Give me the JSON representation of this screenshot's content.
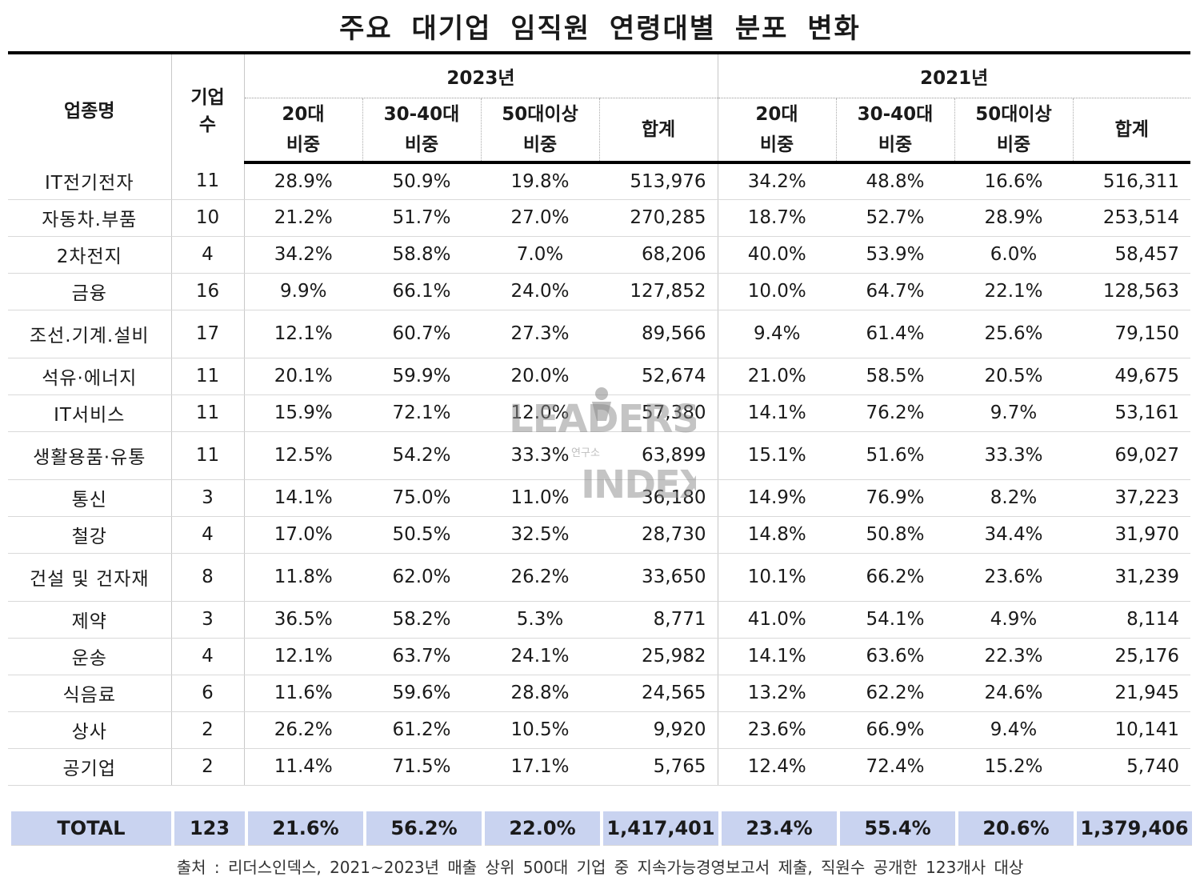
{
  "title": "주요 대기업 임직원 연령대별 분포 변화",
  "header": {
    "industry": "업종명",
    "company_count_line1": "기업",
    "company_count_line2": "수",
    "year_2023": "2023년",
    "year_2021": "2021년",
    "col_20s_line1": "20대",
    "col_3040s_line1": "30-40대",
    "col_50plus_line1": "50대이상",
    "col_ratio_line2": "비중",
    "col_total": "합계"
  },
  "rows": [
    {
      "industry": "IT전기전자",
      "count": "11",
      "y2023": [
        "28.9%",
        "50.9%",
        "19.8%",
        "513,976"
      ],
      "y2021": [
        "34.2%",
        "48.8%",
        "16.6%",
        "516,311"
      ]
    },
    {
      "industry": "자동차.부품",
      "count": "10",
      "y2023": [
        "21.2%",
        "51.7%",
        "27.0%",
        "270,285"
      ],
      "y2021": [
        "18.7%",
        "52.7%",
        "28.9%",
        "253,514"
      ]
    },
    {
      "industry": "2차전지",
      "count": "4",
      "y2023": [
        "34.2%",
        "58.8%",
        "7.0%",
        "68,206"
      ],
      "y2021": [
        "40.0%",
        "53.9%",
        "6.0%",
        "58,457"
      ]
    },
    {
      "industry": "금융",
      "count": "16",
      "y2023": [
        "9.9%",
        "66.1%",
        "24.0%",
        "127,852"
      ],
      "y2021": [
        "10.0%",
        "64.7%",
        "22.1%",
        "128,563"
      ]
    },
    {
      "industry": "조선.기계.설비",
      "count": "17",
      "y2023": [
        "12.1%",
        "60.7%",
        "27.3%",
        "89,566"
      ],
      "y2021": [
        "9.4%",
        "61.4%",
        "25.6%",
        "79,150"
      ]
    },
    {
      "industry": "석유·에너지",
      "count": "11",
      "y2023": [
        "20.1%",
        "59.9%",
        "20.0%",
        "52,674"
      ],
      "y2021": [
        "21.0%",
        "58.5%",
        "20.5%",
        "49,675"
      ]
    },
    {
      "industry": "IT서비스",
      "count": "11",
      "y2023": [
        "15.9%",
        "72.1%",
        "12.0%",
        "57,380"
      ],
      "y2021": [
        "14.1%",
        "76.2%",
        "9.7%",
        "53,161"
      ]
    },
    {
      "industry": "생활용품·유통",
      "count": "11",
      "y2023": [
        "12.5%",
        "54.2%",
        "33.3%",
        "63,899"
      ],
      "y2021": [
        "15.1%",
        "51.6%",
        "33.3%",
        "69,027"
      ]
    },
    {
      "industry": "통신",
      "count": "3",
      "y2023": [
        "14.1%",
        "75.0%",
        "11.0%",
        "36,180"
      ],
      "y2021": [
        "14.9%",
        "76.9%",
        "8.2%",
        "37,223"
      ]
    },
    {
      "industry": "철강",
      "count": "4",
      "y2023": [
        "17.0%",
        "50.5%",
        "32.5%",
        "28,730"
      ],
      "y2021": [
        "14.8%",
        "50.8%",
        "34.4%",
        "31,970"
      ]
    },
    {
      "industry": "건설 및 건자재",
      "count": "8",
      "y2023": [
        "11.8%",
        "62.0%",
        "26.2%",
        "33,650"
      ],
      "y2021": [
        "10.1%",
        "66.2%",
        "23.6%",
        "31,239"
      ]
    },
    {
      "industry": "제약",
      "count": "3",
      "y2023": [
        "36.5%",
        "58.2%",
        "5.3%",
        "8,771"
      ],
      "y2021": [
        "41.0%",
        "54.1%",
        "4.9%",
        "8,114"
      ]
    },
    {
      "industry": "운송",
      "count": "4",
      "y2023": [
        "12.1%",
        "63.7%",
        "24.1%",
        "25,982"
      ],
      "y2021": [
        "14.1%",
        "63.6%",
        "22.3%",
        "25,176"
      ]
    },
    {
      "industry": "식음료",
      "count": "6",
      "y2023": [
        "11.6%",
        "59.6%",
        "28.8%",
        "24,565"
      ],
      "y2021": [
        "13.2%",
        "62.2%",
        "24.6%",
        "21,945"
      ]
    },
    {
      "industry": "상사",
      "count": "2",
      "y2023": [
        "26.2%",
        "61.2%",
        "10.5%",
        "9,920"
      ],
      "y2021": [
        "23.6%",
        "66.9%",
        "9.4%",
        "10,141"
      ]
    },
    {
      "industry": "공기업",
      "count": "2",
      "y2023": [
        "11.4%",
        "71.5%",
        "17.1%",
        "5,765"
      ],
      "y2021": [
        "12.4%",
        "72.4%",
        "15.2%",
        "5,740"
      ]
    }
  ],
  "total": {
    "label": "TOTAL",
    "count": "123",
    "y2023": [
      "21.6%",
      "56.2%",
      "22.0%",
      "1,417,401"
    ],
    "y2021": [
      "23.4%",
      "55.4%",
      "20.6%",
      "1,379,406"
    ]
  },
  "source": "출처 : 리더스인덱스, 2021~2023년 매출 상위 500대 기업 중 지속가능경영보고서 제출, 직원수 공개한 123개사 대상",
  "watermark": {
    "line1": "LEADERS",
    "line2": "INDEX",
    "sub": "연구소",
    "color": "#8a8a8a",
    "icon": "person-figure-icon"
  },
  "colors": {
    "total_bg": "#c9d3f0",
    "rule": "#000000"
  }
}
